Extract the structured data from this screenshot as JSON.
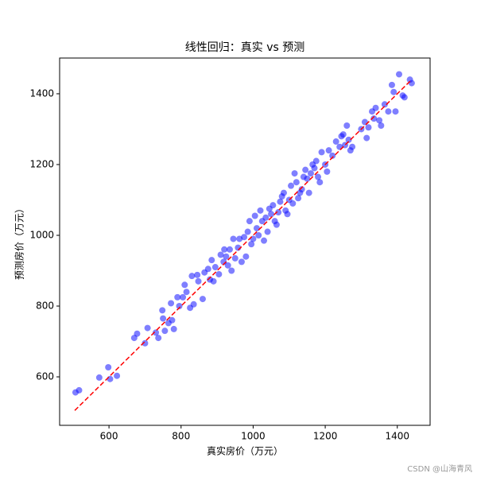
{
  "chart_data": {
    "type": "scatter",
    "title": "线性回归：真实 vs 预测",
    "x_label": "真实房价（万元）",
    "y_label": "预测房价（万元）",
    "watermark": "CSDN @山海青风",
    "xlim": [
      463,
      1491
    ],
    "ylim": [
      463,
      1501
    ],
    "xticks": [
      600,
      800,
      1000,
      1200,
      1400
    ],
    "yticks": [
      600,
      800,
      1000,
      1200,
      1400
    ],
    "series": [
      {
        "color": "#0000ff",
        "opacity": 0.5,
        "x": [
          507,
          517,
          573,
          598,
          603,
          622,
          670,
          678,
          700,
          707,
          730,
          737,
          748,
          750,
          755,
          765,
          772,
          775,
          780,
          790,
          795,
          805,
          810,
          815,
          825,
          830,
          835,
          845,
          848,
          860,
          865,
          875,
          880,
          885,
          890,
          895,
          905,
          910,
          918,
          920,
          925,
          930,
          935,
          940,
          945,
          950,
          958,
          962,
          968,
          975,
          980,
          985,
          990,
          995,
          1000,
          1005,
          1010,
          1015,
          1020,
          1025,
          1030,
          1035,
          1040,
          1045,
          1050,
          1055,
          1060,
          1065,
          1070,
          1075,
          1080,
          1085,
          1090,
          1095,
          1100,
          1105,
          1110,
          1115,
          1120,
          1125,
          1130,
          1135,
          1140,
          1145,
          1150,
          1155,
          1160,
          1165,
          1170,
          1175,
          1180,
          1185,
          1190,
          1200,
          1205,
          1210,
          1220,
          1230,
          1240,
          1245,
          1250,
          1255,
          1260,
          1265,
          1270,
          1275,
          1300,
          1310,
          1315,
          1320,
          1330,
          1335,
          1340,
          1350,
          1355,
          1365,
          1375,
          1385,
          1390,
          1395,
          1405,
          1415,
          1420,
          1435,
          1440
        ],
        "values": [
          556,
          562,
          598,
          627,
          594,
          603,
          710,
          722,
          695,
          738,
          725,
          710,
          788,
          765,
          730,
          752,
          808,
          760,
          735,
          825,
          800,
          825,
          860,
          840,
          795,
          885,
          805,
          888,
          870,
          820,
          895,
          905,
          875,
          930,
          870,
          910,
          890,
          945,
          925,
          960,
          940,
          915,
          960,
          900,
          990,
          935,
          965,
          990,
          925,
          995,
          940,
          1010,
          1040,
          975,
          990,
          1055,
          1020,
          1000,
          1070,
          1040,
          985,
          1050,
          1010,
          1075,
          1060,
          1085,
          1040,
          1030,
          1065,
          1095,
          1110,
          1120,
          1070,
          1060,
          1100,
          1140,
          1090,
          1175,
          1150,
          1105,
          1120,
          1130,
          1165,
          1185,
          1160,
          1120,
          1175,
          1200,
          1190,
          1210,
          1165,
          1150,
          1235,
          1200,
          1180,
          1240,
          1225,
          1265,
          1250,
          1280,
          1285,
          1255,
          1310,
          1270,
          1240,
          1250,
          1300,
          1320,
          1275,
          1305,
          1350,
          1330,
          1360,
          1325,
          1310,
          1370,
          1350,
          1425,
          1405,
          1350,
          1455,
          1395,
          1390,
          1440,
          1430
        ]
      }
    ],
    "reference_line": {
      "color": "#ff0000",
      "dashed": true,
      "x": [
        505,
        1440
      ],
      "y": [
        505,
        1440
      ]
    }
  }
}
